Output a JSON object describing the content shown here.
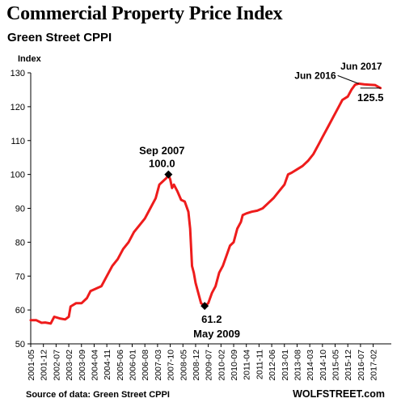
{
  "header": {
    "title": "Commercial Property Price Index",
    "subtitle": "Green Street CPPI"
  },
  "footer": {
    "source": "Source of data: Green Street CPPI",
    "brand": "WOLFSTREET.com"
  },
  "colors": {
    "line": "#ee1c1c",
    "axis": "#000000",
    "marker": "#000000"
  },
  "chart_data": {
    "type": "line",
    "title": "Commercial Property Price Index",
    "subtitle": "Green Street CPPI",
    "ylabel": "Index",
    "xlabel": "",
    "ylim": [
      50,
      130
    ],
    "yticks": [
      50,
      60,
      70,
      80,
      90,
      100,
      110,
      120,
      130
    ],
    "grid": false,
    "legend": "none",
    "xticks": [
      "2001-05",
      "2001-12",
      "2002-07",
      "2003-02",
      "2003-09",
      "2004-04",
      "2004-11",
      "2005-06",
      "2006-01",
      "2006-08",
      "2007-03",
      "2007-10",
      "2008-05",
      "2008-12",
      "2009-07",
      "2010-02",
      "2010-09",
      "2011-04",
      "2011-11",
      "2012-06",
      "2013-01",
      "2013-08",
      "2014-03",
      "2014-10",
      "2015-05",
      "2015-12",
      "2016-07",
      "2017-02"
    ],
    "series": [
      {
        "points": [
          [
            "2001-05",
            57
          ],
          [
            "2001-08",
            57
          ],
          [
            "2001-11",
            56.2
          ],
          [
            "2002-01",
            56.3
          ],
          [
            "2002-04",
            56
          ],
          [
            "2002-06",
            58
          ],
          [
            "2002-09",
            57.5
          ],
          [
            "2002-12",
            57.2
          ],
          [
            "2003-02",
            58
          ],
          [
            "2003-03",
            61
          ],
          [
            "2003-06",
            62
          ],
          [
            "2003-09",
            62
          ],
          [
            "2003-12",
            63.5
          ],
          [
            "2004-02",
            65.6
          ],
          [
            "2004-05",
            66.3
          ],
          [
            "2004-08",
            67
          ],
          [
            "2004-11",
            70
          ],
          [
            "2005-02",
            73
          ],
          [
            "2005-05",
            75
          ],
          [
            "2005-08",
            78
          ],
          [
            "2005-11",
            80
          ],
          [
            "2006-02",
            83
          ],
          [
            "2006-05",
            85
          ],
          [
            "2006-08",
            87
          ],
          [
            "2006-11",
            90
          ],
          [
            "2007-02",
            93
          ],
          [
            "2007-04",
            97
          ],
          [
            "2007-06",
            98
          ],
          [
            "2007-08",
            99
          ],
          [
            "2007-09",
            100
          ],
          [
            "2007-10",
            98.5
          ],
          [
            "2007-11",
            96
          ],
          [
            "2007-12",
            97
          ],
          [
            "2008-02",
            95
          ],
          [
            "2008-04",
            92.5
          ],
          [
            "2008-06",
            92
          ],
          [
            "2008-08",
            89
          ],
          [
            "2008-09",
            84
          ],
          [
            "2008-10",
            73
          ],
          [
            "2008-11",
            71
          ],
          [
            "2008-12",
            68
          ],
          [
            "2009-02",
            64
          ],
          [
            "2009-03",
            62
          ],
          [
            "2009-05",
            61.2
          ],
          [
            "2009-07",
            62
          ],
          [
            "2009-09",
            65
          ],
          [
            "2009-11",
            67
          ],
          [
            "2010-01",
            71
          ],
          [
            "2010-03",
            73
          ],
          [
            "2010-05",
            76
          ],
          [
            "2010-07",
            79
          ],
          [
            "2010-09",
            80
          ],
          [
            "2010-11",
            84
          ],
          [
            "2011-01",
            86
          ],
          [
            "2011-02",
            88
          ],
          [
            "2011-04",
            88.5
          ],
          [
            "2011-07",
            89
          ],
          [
            "2011-10",
            89.3
          ],
          [
            "2012-01",
            90
          ],
          [
            "2012-04",
            91.5
          ],
          [
            "2012-07",
            93
          ],
          [
            "2012-10",
            95
          ],
          [
            "2013-01",
            97
          ],
          [
            "2013-03",
            100
          ],
          [
            "2013-05",
            100.5
          ],
          [
            "2013-08",
            101.5
          ],
          [
            "2013-11",
            102.5
          ],
          [
            "2014-02",
            104
          ],
          [
            "2014-05",
            106
          ],
          [
            "2014-08",
            109
          ],
          [
            "2014-10",
            111
          ],
          [
            "2015-01",
            114
          ],
          [
            "2015-04",
            117
          ],
          [
            "2015-07",
            120
          ],
          [
            "2015-09",
            122
          ],
          [
            "2015-12",
            123
          ],
          [
            "2016-02",
            125
          ],
          [
            "2016-04",
            126.5
          ],
          [
            "2016-06",
            126.8
          ],
          [
            "2016-09",
            126.6
          ],
          [
            "2016-12",
            126.5
          ],
          [
            "2017-03",
            126.4
          ],
          [
            "2017-05",
            125.8
          ],
          [
            "2017-06",
            125.5
          ]
        ]
      }
    ],
    "annotations": [
      {
        "label": "Sep 2007",
        "value_label": "100.0",
        "x": "2007-09",
        "y": 100.0
      },
      {
        "label": "May 2009",
        "value_label": "61.2",
        "x": "2009-05",
        "y": 61.2
      },
      {
        "label": "Jun 2016",
        "x": "2016-06",
        "y": 126.8
      },
      {
        "label": "Jun 2017",
        "value_label": "125.5",
        "x": "2017-06",
        "y": 125.5
      }
    ]
  }
}
